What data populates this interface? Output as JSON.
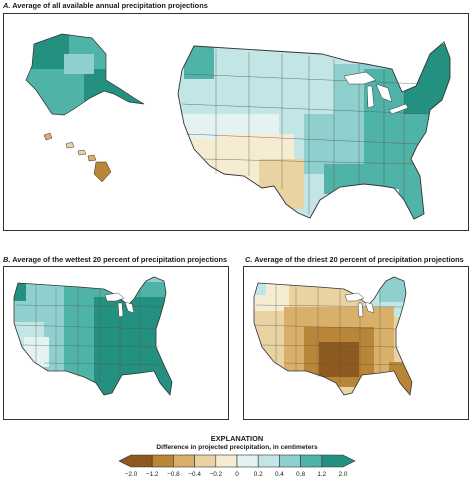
{
  "panels": {
    "a": {
      "letter": "A.",
      "title": "Average of all available annual precipitation projections"
    },
    "b": {
      "letter": "B.",
      "title": "Average of the wettest 20 percent of precipitation projections"
    },
    "c": {
      "letter": "C.",
      "title": "Average of the driest 20 percent of precipitation projections"
    }
  },
  "explanation": {
    "title": "EXPLANATION",
    "subtitle": "Difference in projected precipitation, in centimeters",
    "ticks": [
      "−2.0",
      "−1.2",
      "−0.8",
      "−0.4",
      "−0.2",
      "0",
      "0.2",
      "0.4",
      "0.8",
      "1.2",
      "2.0"
    ],
    "colors": [
      "#8c5a1e",
      "#b98536",
      "#d9b06a",
      "#ead3a2",
      "#f6ecd2",
      "#e4f2f2",
      "#c2e5e6",
      "#8fd0cf",
      "#50b3a7",
      "#24907f"
    ]
  },
  "map_colors": {
    "dry_strong": "#b98536",
    "dry": "#d9b06a",
    "dry_light": "#ead3a2",
    "neutral_dry": "#f6ecd2",
    "neutral_wet": "#e4f2f2",
    "wet_light": "#c2e5e6",
    "wet": "#8fd0cf",
    "wet_mid": "#50b3a7",
    "wet_strong": "#24907f",
    "outline": "#333333"
  }
}
